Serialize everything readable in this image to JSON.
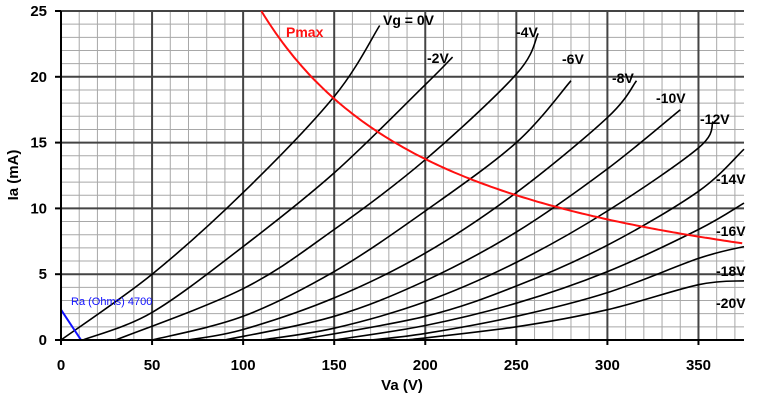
{
  "chart_data": {
    "type": "line",
    "title": "",
    "xlabel": "Va (V)",
    "ylabel": "Ia (mA)",
    "xlim": [
      0,
      375
    ],
    "ylim": [
      0,
      25
    ],
    "x_ticks": [
      0,
      50,
      100,
      150,
      200,
      250,
      300,
      350
    ],
    "y_ticks": [
      0,
      5,
      10,
      15,
      20,
      25
    ],
    "grid": "major and minor",
    "series": [
      {
        "name": "Vg = 0V",
        "label": "Vg = 0V",
        "points": [
          [
            0,
            0
          ],
          [
            50,
            5
          ],
          [
            100,
            11.2
          ],
          [
            150,
            18.5
          ],
          [
            175,
            23.9
          ]
        ]
      },
      {
        "name": "-2V",
        "label": "-2V",
        "points": [
          [
            12,
            0
          ],
          [
            50,
            2.1
          ],
          [
            100,
            7.1
          ],
          [
            150,
            12.7
          ],
          [
            200,
            19.4
          ],
          [
            215,
            21.5
          ]
        ]
      },
      {
        "name": "-4V",
        "label": "-4V",
        "points": [
          [
            30,
            0
          ],
          [
            100,
            3.9
          ],
          [
            150,
            8.4
          ],
          [
            200,
            13.7
          ],
          [
            250,
            20.2
          ],
          [
            262,
            23.3
          ]
        ]
      },
      {
        "name": "-6V",
        "label": "-6V",
        "points": [
          [
            50,
            0
          ],
          [
            100,
            1.8
          ],
          [
            150,
            5.2
          ],
          [
            200,
            9.8
          ],
          [
            250,
            15
          ],
          [
            280,
            19.7
          ]
        ]
      },
      {
        "name": "-8V",
        "label": "-8V",
        "points": [
          [
            70,
            0
          ],
          [
            100,
            0.8
          ],
          [
            150,
            3.2
          ],
          [
            200,
            6.6
          ],
          [
            250,
            11.2
          ],
          [
            300,
            16.9
          ],
          [
            316,
            19.7
          ]
        ]
      },
      {
        "name": "-10V",
        "label": "-10V",
        "points": [
          [
            90,
            0
          ],
          [
            150,
            1.8
          ],
          [
            200,
            4.5
          ],
          [
            250,
            8.2
          ],
          [
            300,
            13
          ],
          [
            340,
            17.5
          ]
        ]
      },
      {
        "name": "-12V",
        "label": "-12V",
        "points": [
          [
            110,
            0
          ],
          [
            150,
            0.9
          ],
          [
            200,
            2.9
          ],
          [
            250,
            5.9
          ],
          [
            300,
            9.8
          ],
          [
            350,
            14.6
          ],
          [
            358,
            16.6
          ]
        ]
      },
      {
        "name": "-14V",
        "label": "-14V",
        "points": [
          [
            130,
            0
          ],
          [
            200,
            1.8
          ],
          [
            250,
            4.1
          ],
          [
            300,
            7.2
          ],
          [
            350,
            11.3
          ],
          [
            375,
            14.5
          ]
        ]
      },
      {
        "name": "-16V",
        "label": "-16V",
        "points": [
          [
            150,
            0
          ],
          [
            200,
            1.1
          ],
          [
            250,
            2.8
          ],
          [
            300,
            5.2
          ],
          [
            350,
            8.4
          ],
          [
            375,
            10.4
          ]
        ]
      },
      {
        "name": "-18V",
        "label": "-18V",
        "points": [
          [
            170,
            0
          ],
          [
            200,
            0.5
          ],
          [
            250,
            1.8
          ],
          [
            300,
            3.6
          ],
          [
            350,
            6.2
          ],
          [
            375,
            7.1
          ]
        ]
      },
      {
        "name": "-20V",
        "label": "-20V",
        "points": [
          [
            190,
            0
          ],
          [
            250,
            1
          ],
          [
            300,
            2.3
          ],
          [
            350,
            4.2
          ],
          [
            375,
            4.5
          ]
        ]
      }
    ],
    "pmax": {
      "label": "Pmax",
      "power_w": 2.75,
      "x_from": 110,
      "x_to": 375
    },
    "load_line": {
      "label": "Ra (Ohms) 4700",
      "points": [
        [
          0,
          2.3
        ],
        [
          11,
          0
        ]
      ]
    }
  }
}
